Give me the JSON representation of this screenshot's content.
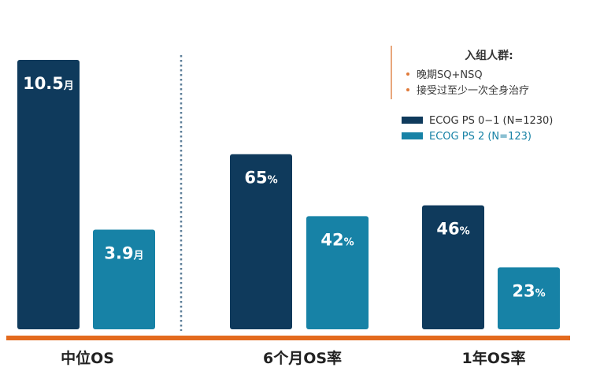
{
  "chart_data": {
    "type": "bar",
    "title": "",
    "xlabel": "",
    "ylabel": "",
    "categories": [
      "中位OS",
      "6个月OS率",
      "1年OS率"
    ],
    "series": [
      {
        "name": "ECOG PS 0−1  (N=1230)",
        "color": "#0f3a5c",
        "values": [
          100,
          65,
          46
        ],
        "value_labels": [
          {
            "num": "10.5",
            "unit": "月"
          },
          {
            "num": "65",
            "unit": "%"
          },
          {
            "num": "46",
            "unit": "%"
          }
        ]
      },
      {
        "name": "ECOG PS 2  (N=123)",
        "color": "#1782a6",
        "values": [
          37,
          42,
          23
        ],
        "value_labels": [
          {
            "num": "3.9",
            "unit": "月"
          },
          {
            "num": "42",
            "unit": "%"
          },
          {
            "num": "23",
            "unit": "%"
          }
        ]
      }
    ],
    "ylim": [
      0,
      100
    ],
    "grid": false,
    "legend_position": "top-right",
    "baseline_color": "#e36a1e",
    "divider_color": "#5c7e98"
  },
  "info_box": {
    "title": "入组人群:",
    "items": [
      "晚期SQ+NSQ",
      "接受过至少一次全身治疗"
    ]
  }
}
